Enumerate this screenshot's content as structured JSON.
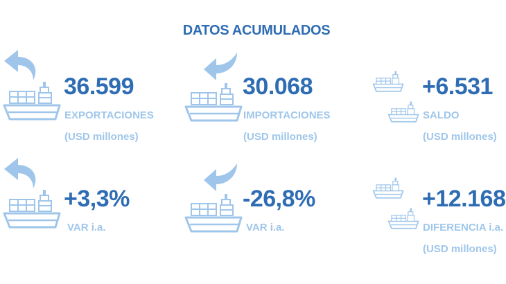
{
  "header": {
    "title": "DATOS ACUMULADOS"
  },
  "colors": {
    "value_text": "#2e6cb3",
    "label_text": "#9fc6ea",
    "ship_fill": "#9fc6ea",
    "arrow_fill": "#9fc6ea"
  },
  "stats": [
    {
      "value": "36.599",
      "label_line1": "EXPORTACIONES",
      "label_line2": "(USD millones)",
      "icon": "export-ship-icon"
    },
    {
      "value": "30.068",
      "label_line1": "IMPORTACIONES",
      "label_line2": "(USD millones)",
      "icon": "import-ship-icon"
    },
    {
      "value": "+6.531",
      "label_line1": "SALDO",
      "label_line2": "(USD millones)",
      "icon": "trade-balance-ships-icon"
    },
    {
      "value": "+3,3%",
      "label_line1": "VAR i.a.",
      "icon": "export-ship-icon"
    },
    {
      "value": "-26,8%",
      "label_line1": "VAR i.a.",
      "icon": "import-ship-icon"
    },
    {
      "value": "+12.168",
      "label_line1": "DIFERENCIA i.a.",
      "label_line2": "(USD millones)",
      "icon": "trade-balance-ships-icon"
    }
  ]
}
